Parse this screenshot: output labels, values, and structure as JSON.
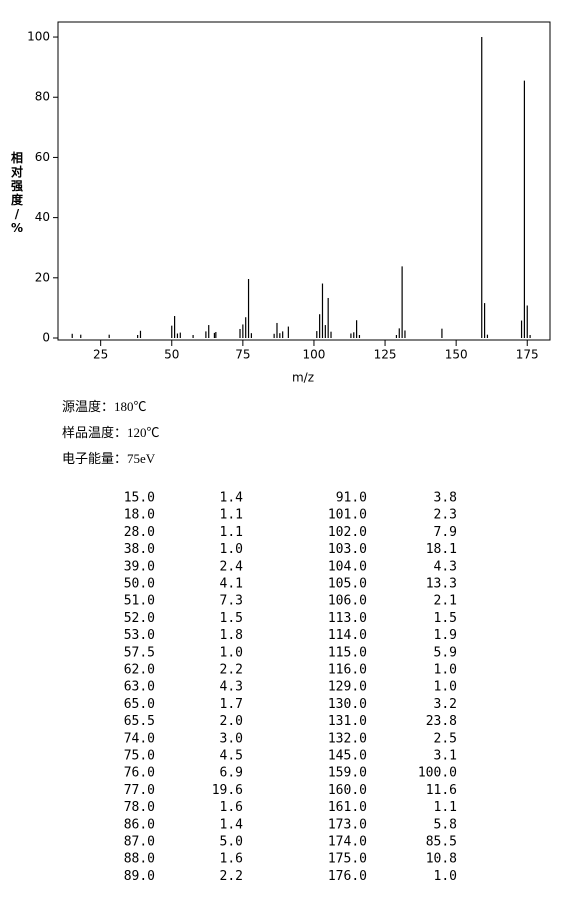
{
  "chart_data": {
    "type": "bar",
    "ylabel": "相对强度/%",
    "xlabel": "m/z",
    "x": [
      15,
      18,
      28,
      38,
      39,
      50,
      51,
      52,
      53,
      57.5,
      62,
      63,
      65,
      65.5,
      74,
      75,
      76,
      77,
      78,
      86,
      87,
      88,
      89,
      91,
      101,
      102,
      103,
      104,
      105,
      106,
      113,
      114,
      115,
      116,
      129,
      130,
      131,
      132,
      145,
      159,
      160,
      161,
      173,
      174,
      175,
      176
    ],
    "values": [
      1.4,
      1.1,
      1.1,
      1.0,
      2.4,
      4.1,
      7.3,
      1.5,
      1.8,
      1.0,
      2.2,
      4.3,
      1.7,
      2.0,
      3.0,
      4.5,
      6.9,
      19.6,
      1.6,
      1.4,
      5.0,
      1.6,
      2.2,
      3.8,
      2.3,
      7.9,
      18.1,
      4.3,
      13.3,
      2.1,
      1.5,
      1.9,
      5.9,
      1.0,
      1.0,
      3.2,
      23.8,
      2.5,
      3.1,
      100.0,
      11.6,
      1.1,
      5.8,
      85.5,
      10.8,
      1.0
    ],
    "color": "#000000",
    "xlim": [
      10,
      183
    ],
    "xticks": [
      25,
      50,
      75,
      100,
      125,
      150,
      175
    ],
    "ylim": [
      0,
      105
    ],
    "yticks": [
      0,
      20,
      40,
      60,
      80,
      100
    ]
  },
  "info": [
    "源温度：180℃",
    "样品温度：120℃",
    "电子能量：75eV"
  ],
  "table": {
    "rows": [
      [
        "15.0",
        "1.4"
      ],
      [
        "18.0",
        "1.1"
      ],
      [
        "28.0",
        "1.1"
      ],
      [
        "38.0",
        "1.0"
      ],
      [
        "39.0",
        "2.4"
      ],
      [
        "50.0",
        "4.1"
      ],
      [
        "51.0",
        "7.3"
      ],
      [
        "52.0",
        "1.5"
      ],
      [
        "53.0",
        "1.8"
      ],
      [
        "57.5",
        "1.0"
      ],
      [
        "62.0",
        "2.2"
      ],
      [
        "63.0",
        "4.3"
      ],
      [
        "65.0",
        "1.7"
      ],
      [
        "65.5",
        "2.0"
      ],
      [
        "74.0",
        "3.0"
      ],
      [
        "75.0",
        "4.5"
      ],
      [
        "76.0",
        "6.9"
      ],
      [
        "77.0",
        "19.6"
      ],
      [
        "78.0",
        "1.6"
      ],
      [
        "86.0",
        "1.4"
      ],
      [
        "87.0",
        "5.0"
      ],
      [
        "88.0",
        "1.6"
      ],
      [
        "89.0",
        "2.2"
      ],
      [
        "91.0",
        "3.8"
      ],
      [
        "101.0",
        "2.3"
      ],
      [
        "102.0",
        "7.9"
      ],
      [
        "103.0",
        "18.1"
      ],
      [
        "104.0",
        "4.3"
      ],
      [
        "105.0",
        "13.3"
      ],
      [
        "106.0",
        "2.1"
      ],
      [
        "113.0",
        "1.5"
      ],
      [
        "114.0",
        "1.9"
      ],
      [
        "115.0",
        "5.9"
      ],
      [
        "116.0",
        "1.0"
      ],
      [
        "129.0",
        "1.0"
      ],
      [
        "130.0",
        "3.2"
      ],
      [
        "131.0",
        "23.8"
      ],
      [
        "132.0",
        "2.5"
      ],
      [
        "145.0",
        "3.1"
      ],
      [
        "159.0",
        "100.0"
      ],
      [
        "160.0",
        "11.6"
      ],
      [
        "161.0",
        "1.1"
      ],
      [
        "173.0",
        "5.8"
      ],
      [
        "174.0",
        "85.5"
      ],
      [
        "175.0",
        "10.8"
      ],
      [
        "176.0",
        "1.0"
      ]
    ]
  }
}
